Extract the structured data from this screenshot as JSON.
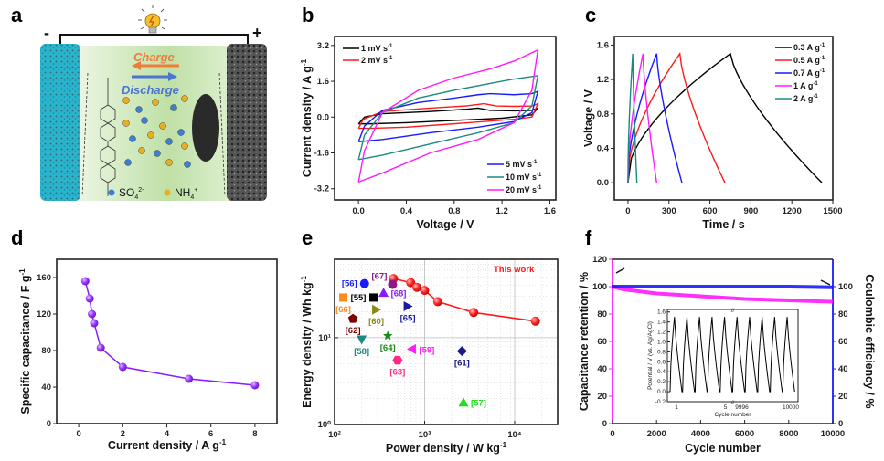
{
  "panels": {
    "a": {
      "label": "a",
      "minus": "-",
      "plus": "+",
      "charge": "Charge",
      "discharge": "Discharge",
      "ion1": "SO",
      "ion1_sub": "4",
      "ion1_sup": "2-",
      "ion2": "NH",
      "ion2_sub": "4",
      "ion2_sup": "+",
      "colors": {
        "charge": "#f07c3a",
        "discharge": "#4a74d0",
        "electrolyte": "#c9e4b4",
        "anode": "#2ab5cf",
        "cathode": "#4a4a4a",
        "so4": "#3f7fcf",
        "nh4": "#e8b020"
      }
    },
    "b": {
      "label": "b"
    },
    "c": {
      "label": "c"
    },
    "d": {
      "label": "d"
    },
    "e": {
      "label": "e",
      "annotation": "This work"
    },
    "f": {
      "label": "f"
    }
  },
  "chart_data": [
    {
      "id": "b",
      "type": "line",
      "title": "",
      "xlabel": "Voltage / V",
      "ylabel": "Current density / A g⁻¹",
      "xlim": [
        -0.2,
        1.65
      ],
      "ylim": [
        -3.7,
        3.6
      ],
      "xticks": [
        0.0,
        0.4,
        0.8,
        1.2,
        1.6
      ],
      "xtick_labels": [
        "0.0",
        "0.4",
        "0.8",
        "1.2",
        "1.6"
      ],
      "yticks": [
        -3.2,
        -1.6,
        0.0,
        1.6,
        3.2
      ],
      "ytick_labels": [
        "-3.2",
        "-1.6",
        "0.0",
        "1.6",
        "3.2"
      ],
      "legend": [
        {
          "name": "1 mV s⁻¹",
          "position": "top-left"
        },
        {
          "name": "2 mV s⁻¹",
          "position": "top-left"
        },
        {
          "name": "5 mV s⁻¹",
          "position": "bottom-right"
        },
        {
          "name": "10 mV s⁻¹",
          "position": "bottom-right"
        },
        {
          "name": "20 mV s⁻¹",
          "position": "bottom-right"
        }
      ],
      "series": [
        {
          "name": "1 mV s⁻¹",
          "color": "#000000",
          "upper": [
            [
              0.0,
              -0.3
            ],
            [
              0.05,
              0.0
            ],
            [
              0.2,
              0.15
            ],
            [
              0.6,
              0.25
            ],
            [
              0.9,
              0.35
            ],
            [
              1.0,
              0.4
            ],
            [
              1.1,
              0.3
            ],
            [
              1.3,
              0.28
            ],
            [
              1.45,
              0.3
            ],
            [
              1.5,
              0.4
            ]
          ],
          "lower": [
            [
              1.5,
              0.4
            ],
            [
              1.45,
              0.1
            ],
            [
              1.2,
              -0.05
            ],
            [
              0.8,
              -0.15
            ],
            [
              0.4,
              -0.25
            ],
            [
              0.1,
              -0.3
            ],
            [
              0.0,
              -0.3
            ]
          ]
        },
        {
          "name": "2 mV s⁻¹",
          "color": "#ff1a1a",
          "upper": [
            [
              0.0,
              -0.5
            ],
            [
              0.04,
              -0.1
            ],
            [
              0.2,
              0.25
            ],
            [
              0.6,
              0.4
            ],
            [
              0.9,
              0.5
            ],
            [
              1.05,
              0.6
            ],
            [
              1.15,
              0.5
            ],
            [
              1.3,
              0.48
            ],
            [
              1.45,
              0.5
            ],
            [
              1.5,
              0.6
            ]
          ],
          "lower": [
            [
              1.5,
              0.6
            ],
            [
              1.45,
              0.0
            ],
            [
              1.3,
              -0.1
            ],
            [
              0.8,
              -0.3
            ],
            [
              0.4,
              -0.45
            ],
            [
              0.1,
              -0.5
            ],
            [
              0.0,
              -0.5
            ]
          ]
        },
        {
          "name": "5 mV s⁻¹",
          "color": "#1a1aff",
          "upper": [
            [
              0.0,
              -1.1
            ],
            [
              0.05,
              -0.4
            ],
            [
              0.2,
              0.3
            ],
            [
              0.5,
              0.65
            ],
            [
              0.8,
              0.85
            ],
            [
              1.0,
              1.0
            ],
            [
              1.1,
              1.05
            ],
            [
              1.3,
              1.0
            ],
            [
              1.45,
              1.05
            ],
            [
              1.5,
              1.15
            ]
          ],
          "lower": [
            [
              1.5,
              1.15
            ],
            [
              1.45,
              0.2
            ],
            [
              1.3,
              -0.2
            ],
            [
              1.0,
              -0.45
            ],
            [
              0.6,
              -0.7
            ],
            [
              0.2,
              -1.0
            ],
            [
              0.0,
              -1.1
            ]
          ]
        },
        {
          "name": "10 mV s⁻¹",
          "color": "#1a8a80",
          "upper": [
            [
              0.0,
              -1.9
            ],
            [
              0.05,
              -0.8
            ],
            [
              0.2,
              0.2
            ],
            [
              0.5,
              0.85
            ],
            [
              0.8,
              1.2
            ],
            [
              1.1,
              1.5
            ],
            [
              1.3,
              1.7
            ],
            [
              1.5,
              1.85
            ]
          ],
          "lower": [
            [
              1.5,
              1.85
            ],
            [
              1.45,
              0.5
            ],
            [
              1.3,
              -0.25
            ],
            [
              1.0,
              -0.7
            ],
            [
              0.6,
              -1.2
            ],
            [
              0.2,
              -1.7
            ],
            [
              0.0,
              -1.9
            ]
          ]
        },
        {
          "name": "20 mV s⁻¹",
          "color": "#ff1aff",
          "upper": [
            [
              0.0,
              -2.9
            ],
            [
              0.05,
              -1.5
            ],
            [
              0.2,
              0.2
            ],
            [
              0.5,
              1.2
            ],
            [
              0.8,
              1.75
            ],
            [
              1.1,
              2.15
            ],
            [
              1.3,
              2.5
            ],
            [
              1.5,
              3.0
            ]
          ],
          "lower": [
            [
              1.5,
              3.0
            ],
            [
              1.45,
              1.2
            ],
            [
              1.3,
              -0.25
            ],
            [
              1.0,
              -1.0
            ],
            [
              0.6,
              -1.6
            ],
            [
              0.2,
              -2.5
            ],
            [
              0.0,
              -2.9
            ]
          ]
        }
      ]
    },
    {
      "id": "c",
      "type": "line",
      "title": "",
      "xlabel": "Time / s",
      "ylabel": "Voltage / V",
      "xlim": [
        -100,
        1500
      ],
      "ylim": [
        -0.2,
        1.7
      ],
      "xticks": [
        0,
        300,
        600,
        900,
        1200,
        1500
      ],
      "xtick_labels": [
        "0",
        "300",
        "600",
        "900",
        "1200",
        "1500"
      ],
      "yticks": [
        0.0,
        0.4,
        0.8,
        1.2,
        1.6
      ],
      "ytick_labels": [
        "0.0",
        "0.4",
        "0.8",
        "1.2",
        "1.6"
      ],
      "legend_position": "top-right",
      "series": [
        {
          "name": "0.3 A g⁻¹",
          "color": "#000000",
          "charge_end": 750,
          "discharge_end": 1420
        },
        {
          "name": "0.5 A g⁻¹",
          "color": "#ff1a1a",
          "charge_end": 380,
          "discharge_end": 710
        },
        {
          "name": "0.7 A g⁻¹",
          "color": "#1a1aff",
          "charge_end": 210,
          "discharge_end": 395
        },
        {
          "name": "1 A g⁻¹",
          "color": "#ff1aff",
          "charge_end": 110,
          "discharge_end": 210
        },
        {
          "name": "2 A g⁻¹",
          "color": "#1a8a80",
          "charge_end": 35,
          "discharge_end": 65
        }
      ],
      "vmax": 1.5
    },
    {
      "id": "d",
      "type": "line",
      "title": "",
      "xlabel": "Current density / A g⁻¹",
      "ylabel": "Specific capacitance / F g⁻¹",
      "xlim": [
        -1,
        9
      ],
      "ylim": [
        0,
        180
      ],
      "xticks": [
        0,
        2,
        4,
        6,
        8
      ],
      "xtick_labels": [
        "0",
        "2",
        "4",
        "6",
        "8"
      ],
      "yticks": [
        0,
        40,
        80,
        120,
        160
      ],
      "ytick_labels": [
        "0",
        "40",
        "80",
        "120",
        "160"
      ],
      "color": "#8a1aff",
      "x": [
        0.3,
        0.5,
        0.6,
        0.7,
        1.0,
        2.0,
        5.0,
        8.0
      ],
      "y": [
        156,
        137,
        120,
        110,
        83,
        62,
        49,
        42
      ]
    },
    {
      "id": "e",
      "type": "scatter",
      "title": "",
      "xlabel": "Power density / W kg⁻¹",
      "ylabel": "Energy density / Wh kg⁻¹",
      "xscale": "log",
      "yscale": "log",
      "xlim": [
        100,
        30000
      ],
      "ylim": [
        1,
        80
      ],
      "xticks": [
        100,
        1000,
        10000
      ],
      "xtick_labels": [
        "10²",
        "10³",
        "10⁴"
      ],
      "yticks": [
        1,
        10
      ],
      "ytick_labels": [
        "10⁰",
        "10¹"
      ],
      "grid": true,
      "this_work": {
        "name": "This work",
        "color": "#ff1a1a",
        "x": [
          450,
          700,
          820,
          1000,
          1400,
          3500,
          17000
        ],
        "y": [
          48,
          43,
          38,
          35,
          26,
          19.5,
          15.5
        ]
      },
      "references": [
        {
          "label": "[55]",
          "x": 270,
          "y": 29,
          "marker": "square",
          "color": "#000000",
          "text_side": "left"
        },
        {
          "label": "[56]",
          "x": 215,
          "y": 42,
          "marker": "circle",
          "color": "#1a1aff",
          "text_side": "left"
        },
        {
          "label": "[57]",
          "x": 2700,
          "y": 1.8,
          "marker": "triangle-up",
          "color": "#22dd22",
          "text_side": "right"
        },
        {
          "label": "[58]",
          "x": 200,
          "y": 9.5,
          "marker": "triangle-down",
          "color": "#1a8a80",
          "text_side": "below"
        },
        {
          "label": "[59]",
          "x": 720,
          "y": 7.4,
          "marker": "triangle-left",
          "color": "#ff1aff",
          "text_side": "right"
        },
        {
          "label": "[60]",
          "x": 290,
          "y": 21,
          "marker": "triangle-right",
          "color": "#8a8a10",
          "text_side": "below"
        },
        {
          "label": "[61]",
          "x": 2600,
          "y": 7,
          "marker": "diamond",
          "color": "#1a1a80",
          "text_side": "below"
        },
        {
          "label": "[62]",
          "x": 160,
          "y": 16.5,
          "marker": "pentagon",
          "color": "#800000",
          "text_side": "below"
        },
        {
          "label": "[63]",
          "x": 500,
          "y": 5.5,
          "marker": "hexagon",
          "color": "#ff2a8a",
          "text_side": "below"
        },
        {
          "label": "[64]",
          "x": 390,
          "y": 10.5,
          "marker": "star",
          "color": "#1a8a1a",
          "text_side": "below"
        },
        {
          "label": "[65]",
          "x": 650,
          "y": 23,
          "marker": "triangle-right",
          "color": "#1a1aa0",
          "text_side": "below"
        },
        {
          "label": "[66]",
          "x": 125,
          "y": 29,
          "marker": "square",
          "color": "#ff8a1a",
          "text_side": "below"
        },
        {
          "label": "[67]",
          "x": 440,
          "y": 41,
          "marker": "circle",
          "color": "#8a1a8a",
          "text_side": "left-top"
        },
        {
          "label": "[68]",
          "x": 350,
          "y": 33,
          "marker": "triangle-up",
          "color": "#8a1aff",
          "text_side": "right"
        }
      ]
    },
    {
      "id": "f",
      "type": "line",
      "title": "",
      "xlabel": "Cycle number",
      "ylabel": "Capacitance retention / %",
      "ylabel_right": "Coulombic efficiency / %",
      "xlim": [
        0,
        10000
      ],
      "ylim": [
        0,
        120
      ],
      "ylim_right": [
        0,
        120
      ],
      "xticks": [
        0,
        2000,
        4000,
        6000,
        8000,
        10000
      ],
      "xtick_labels": [
        "0",
        "2000",
        "4000",
        "6000",
        "8000",
        "10000"
      ],
      "yticks": [
        0,
        20,
        40,
        60,
        80,
        100,
        120
      ],
      "ytick_labels": [
        "0",
        "20",
        "40",
        "60",
        "80",
        "100",
        "120"
      ],
      "yticks_right": [
        0,
        20,
        40,
        60,
        80,
        100
      ],
      "ytick_labels_right": [
        "0",
        "20",
        "40",
        "60",
        "80",
        "100"
      ],
      "series": [
        {
          "name": "Capacitance retention",
          "color": "#ff1aff",
          "axis": "left",
          "x": [
            0,
            500,
            1000,
            2000,
            3000,
            4000,
            5000,
            6000,
            7000,
            8000,
            9000,
            10000
          ],
          "y": [
            100,
            98,
            97,
            95,
            94,
            93,
            92,
            91,
            90.5,
            90,
            89.5,
            89
          ]
        },
        {
          "name": "Coulombic efficiency",
          "color": "#1a1aff",
          "axis": "right",
          "x": [
            0,
            2000,
            4000,
            6000,
            8000,
            10000
          ],
          "y": [
            100,
            100,
            100,
            100,
            100,
            99.5
          ]
        }
      ],
      "inset": {
        "xlabel": "Cycle number",
        "ylabel": "Potential / V (vs. Ag/AgCl)",
        "yticks": [
          -0.2,
          0.0,
          0.2,
          0.4,
          0.6,
          0.8,
          1.0,
          1.2,
          1.4,
          1.6
        ],
        "ytick_labels": [
          "-0.2",
          "0.0",
          "0.2",
          "0.4",
          "0.6",
          "0.8",
          "1.0",
          "1.2",
          "1.4",
          "1.6"
        ],
        "xtick_labels": [
          "1",
          "5",
          "9996",
          "10000"
        ],
        "ylim": [
          -0.2,
          1.65
        ],
        "cycles_before_break": 5,
        "cycles_after_break": 5,
        "vmax": 1.5,
        "vmin": 0.0,
        "color": "#000000"
      }
    }
  ]
}
